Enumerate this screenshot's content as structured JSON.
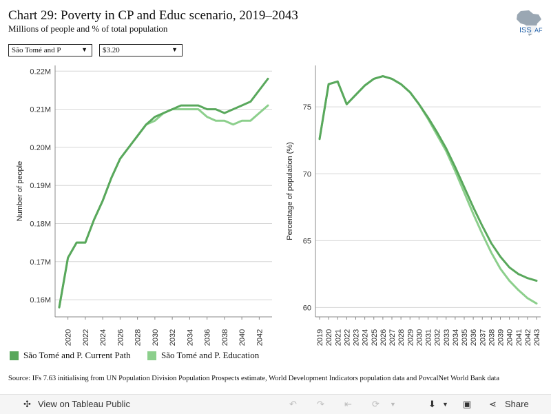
{
  "header": {
    "title": "Chart 29: Poverty in CP and Educ scenario, 2019–2043",
    "subtitle": "Millions of people and % of total population",
    "logo_text": "ISS",
    "logo_text2": "AF"
  },
  "filters": {
    "country": "São Tomé and P",
    "threshold": "$3.20"
  },
  "colors": {
    "current_path": "#59a85c",
    "education": "#8ccf8c",
    "grid": "#d6d6d6",
    "axis": "#888888"
  },
  "chart_data": [
    {
      "type": "line",
      "ylabel": "Number of people",
      "ylim": [
        0.1555,
        0.2215
      ],
      "yticks": [
        0.16,
        0.17,
        0.18,
        0.19,
        0.2,
        0.21,
        0.22
      ],
      "ytick_labels": [
        "0.16M",
        "0.17M",
        "0.18M",
        "0.19M",
        "0.20M",
        "0.21M",
        "0.22M"
      ],
      "xticks": [
        2020,
        2022,
        2024,
        2026,
        2028,
        2030,
        2032,
        2034,
        2036,
        2038,
        2040,
        2042
      ],
      "x": [
        2019,
        2020,
        2021,
        2022,
        2023,
        2024,
        2025,
        2026,
        2027,
        2028,
        2029,
        2030,
        2031,
        2032,
        2033,
        2034,
        2035,
        2036,
        2037,
        2038,
        2039,
        2040,
        2041,
        2042,
        2043
      ],
      "series": [
        {
          "name": "São Tomé and P. Current Path",
          "values": [
            0.158,
            0.171,
            0.175,
            0.175,
            0.181,
            0.186,
            0.192,
            0.197,
            0.2,
            0.203,
            0.206,
            0.208,
            0.209,
            0.21,
            0.211,
            0.211,
            0.211,
            0.21,
            0.21,
            0.209,
            0.21,
            0.211,
            0.212,
            0.215,
            0.218
          ]
        },
        {
          "name": "São Tomé and P. Education",
          "values": [
            0.158,
            0.171,
            0.175,
            0.175,
            0.181,
            0.186,
            0.192,
            0.197,
            0.2,
            0.203,
            0.206,
            0.207,
            0.209,
            0.21,
            0.21,
            0.21,
            0.21,
            0.208,
            0.207,
            0.207,
            0.206,
            0.207,
            0.207,
            0.209,
            0.211
          ]
        }
      ]
    },
    {
      "type": "line",
      "ylabel": "Percentage of population (%)",
      "ylim": [
        59.3,
        78.1
      ],
      "yticks": [
        60,
        65,
        70,
        75
      ],
      "ytick_labels": [
        "60",
        "65",
        "70",
        "75"
      ],
      "xticks": [
        2019,
        2020,
        2021,
        2022,
        2023,
        2024,
        2025,
        2026,
        2027,
        2028,
        2029,
        2030,
        2031,
        2032,
        2033,
        2034,
        2035,
        2036,
        2037,
        2038,
        2039,
        2040,
        2041,
        2042,
        2043
      ],
      "x": [
        2019,
        2020,
        2021,
        2022,
        2023,
        2024,
        2025,
        2026,
        2027,
        2028,
        2029,
        2030,
        2031,
        2032,
        2033,
        2034,
        2035,
        2036,
        2037,
        2038,
        2039,
        2040,
        2041,
        2042,
        2043
      ],
      "series": [
        {
          "name": "São Tomé and P. Current Path",
          "values": [
            72.6,
            76.7,
            76.9,
            75.2,
            75.9,
            76.6,
            77.1,
            77.3,
            77.1,
            76.7,
            76.1,
            75.2,
            74.2,
            73.1,
            71.9,
            70.5,
            69.0,
            67.5,
            66.1,
            64.8,
            63.8,
            63.0,
            62.5,
            62.2,
            62.0
          ]
        },
        {
          "name": "São Tomé and P. Education",
          "values": [
            72.6,
            76.7,
            76.9,
            75.2,
            75.9,
            76.6,
            77.1,
            77.3,
            77.1,
            76.7,
            76.1,
            75.2,
            74.1,
            72.9,
            71.7,
            70.2,
            68.6,
            67.0,
            65.5,
            64.1,
            62.9,
            62.0,
            61.3,
            60.7,
            60.3
          ]
        }
      ]
    }
  ],
  "legend": {
    "item1": "São Tomé and P. Current Path",
    "item2": "São Tomé and P. Education"
  },
  "source": "Source: IFs 7.63 initialising from UN Population Division Population Prospects estimate, World Development Indicators population data and PovcalNet World Bank data",
  "toolbar": {
    "view_label": "View on Tableau Public",
    "share_label": "Share"
  }
}
